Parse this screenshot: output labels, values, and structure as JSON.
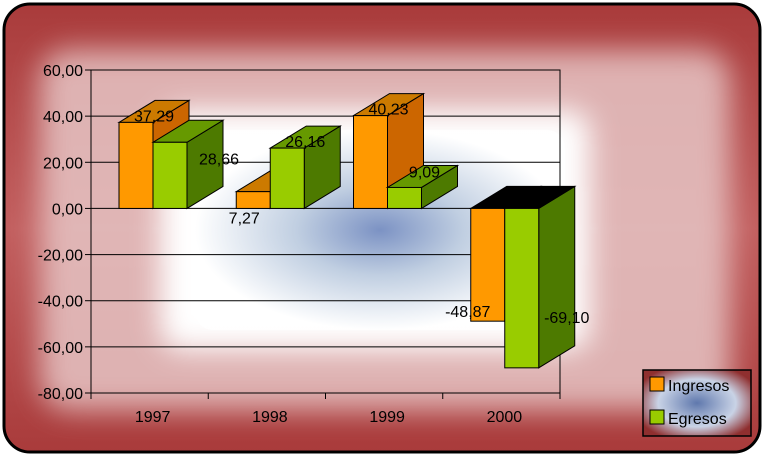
{
  "chart_data": {
    "type": "bar",
    "categories": [
      "1997",
      "1998",
      "1999",
      "2000"
    ],
    "series": [
      {
        "name": "Ingresos",
        "values": [
          37.29,
          7.27,
          40.23,
          -48.87
        ],
        "labels": [
          "37,29",
          "7,27",
          "40,23",
          "-48,87"
        ]
      },
      {
        "name": "Egresos",
        "values": [
          28.66,
          26.16,
          9.09,
          -69.1
        ],
        "labels": [
          "28,66",
          "26,16",
          "9,09",
          "-69,10"
        ]
      }
    ],
    "ylim": [
      -80,
      60
    ],
    "y_ticks": [
      60,
      40,
      20,
      0,
      -20,
      -40,
      -60,
      -80
    ],
    "y_tick_labels": [
      "60,00",
      "40,00",
      "20,00",
      "0,00",
      "-20,00",
      "-40,00",
      "-60,00",
      "-80,00"
    ],
    "grid": true,
    "three_d": true,
    "legend_position": "bottom-right",
    "colors": {
      "ingresos_front": "#ff9900",
      "ingresos_side": "#cc6600",
      "ingresos_top": "#cc7a00",
      "egresos_front": "#99cc00",
      "egresos_side": "#4d7a00",
      "egresos_top": "#669900",
      "border": "#000000",
      "background_outer": "#b04545",
      "background_inner": "#ffffff",
      "background_center": "#6b84b8"
    }
  }
}
